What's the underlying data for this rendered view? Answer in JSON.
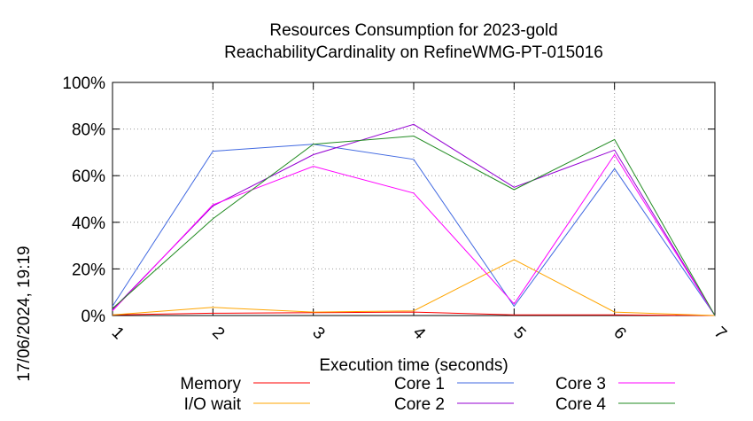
{
  "chart_data": {
    "type": "line",
    "title": "Resources Consumption for 2023-gold",
    "subtitle": "ReachabilityCardinality on RefineWMG-PT-015016",
    "xlabel": "Execution time (seconds)",
    "ylabel": "",
    "side_label": "17/06/2024, 19:19",
    "x": [
      1,
      2,
      3,
      4,
      5,
      6,
      7
    ],
    "xlim": [
      1,
      7
    ],
    "ylim": [
      0,
      100
    ],
    "x_ticks": [
      "1",
      "2",
      "3",
      "4",
      "5",
      "6",
      "7"
    ],
    "y_ticks": [
      "0%",
      "20%",
      "40%",
      "60%",
      "80%",
      "100%"
    ],
    "y_tick_values": [
      0,
      20,
      40,
      60,
      80,
      100
    ],
    "grid": true,
    "legend_position": "bottom",
    "series": [
      {
        "name": "Memory",
        "color": "#ff0000",
        "values": [
          0.3,
          1.0,
          1.2,
          1.5,
          0.3,
          0.3,
          0.0
        ]
      },
      {
        "name": "I/O wait",
        "color": "#ffa500",
        "values": [
          0.3,
          3.5,
          1.5,
          2.0,
          24.0,
          1.5,
          0.0
        ]
      },
      {
        "name": "Core 1",
        "color": "#4169e1",
        "values": [
          4.0,
          70.5,
          73.5,
          67.0,
          4.0,
          63.0,
          0.0
        ]
      },
      {
        "name": "Core 2",
        "color": "#9400d3",
        "values": [
          2.5,
          47.0,
          69.0,
          82.0,
          55.0,
          71.0,
          0.0
        ]
      },
      {
        "name": "Core 3",
        "color": "#ff00ff",
        "values": [
          2.0,
          47.5,
          64.0,
          52.5,
          5.0,
          69.0,
          0.0
        ]
      },
      {
        "name": "Core 4",
        "color": "#228b22",
        "values": [
          3.0,
          41.5,
          73.5,
          77.0,
          54.0,
          75.5,
          0.0
        ]
      }
    ]
  }
}
